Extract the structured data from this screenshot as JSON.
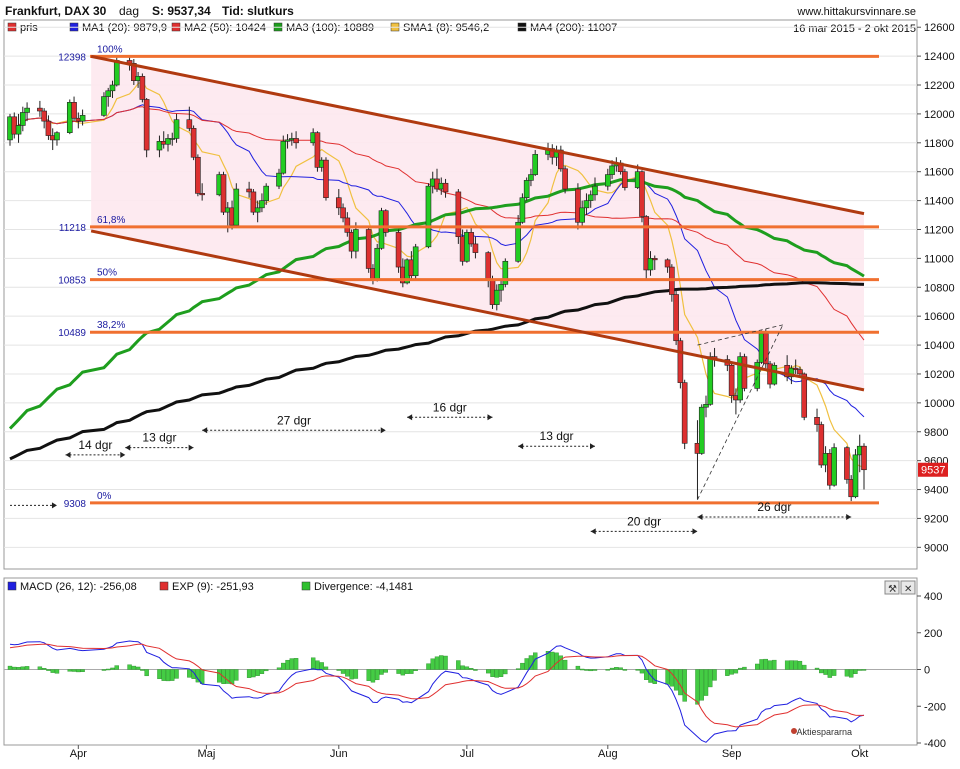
{
  "header": {
    "title": "Frankfurt, DAX 30",
    "period": "dag",
    "price_label": "S: 9537,34",
    "time_label": "Tid: slutkurs",
    "site": "www.hittakursvinnare.se",
    "date_range": "16 mar 2015 - 2 okt 2015"
  },
  "legend": [
    {
      "label": "pris",
      "color": "#e03030"
    },
    {
      "label": "MA1 (20): 9879,9",
      "color": "#2020e0"
    },
    {
      "label": "MA2 (50): 10424",
      "color": "#e03030"
    },
    {
      "label": "MA3 (100): 10889",
      "color": "#1e9e1e"
    },
    {
      "label": "SMA1 (8): 9546,2",
      "color": "#f0c040"
    },
    {
      "label": "MA4 (200): 11007",
      "color": "#111111"
    }
  ],
  "macd_legend": [
    {
      "label": "MACD (26, 12): -256,08",
      "color": "#2020e0"
    },
    {
      "label": "EXP (9): -251,93",
      "color": "#e03030"
    },
    {
      "label": "Divergence: -4,1481",
      "color": "#30c030"
    }
  ],
  "colors": {
    "up_candle": "#22cc22",
    "down_candle": "#dd3030",
    "fib_line": "#f07030",
    "channel": "#b03a10",
    "ma20": "#2020e0",
    "ma50": "#e03030",
    "ma100": "#1e9e1e",
    "sma8": "#f0c040",
    "ma200": "#111111",
    "channel_fill": "#fde8ee"
  },
  "watermark": "Aktiespararna",
  "last_price_tag": "9537",
  "chart_data": {
    "type": "candlestick",
    "x_range": [
      "2015-03-16",
      "2015-10-02"
    ],
    "y_range": [
      8850,
      12650
    ],
    "y_ticks": [
      {
        "value": 9000,
        "label": "9000"
      },
      {
        "value": 9200,
        "label": "9200"
      },
      {
        "value": 9400,
        "label": "9400"
      },
      {
        "value": 9600,
        "label": "9600"
      },
      {
        "value": 9800,
        "label": "9800"
      },
      {
        "value": 10000,
        "label": "10000"
      },
      {
        "value": 10200,
        "label": "10200"
      },
      {
        "value": 10400,
        "label": "10400"
      },
      {
        "value": 10600,
        "label": "10600"
      },
      {
        "value": 10800,
        "label": "10800"
      },
      {
        "value": 11000,
        "label": "11000"
      },
      {
        "value": 11200,
        "label": "11200"
      },
      {
        "value": 11400,
        "label": "11400"
      },
      {
        "value": 11600,
        "label": "11600"
      },
      {
        "value": 11800,
        "label": "11800"
      },
      {
        "value": 12000,
        "label": "12000"
      },
      {
        "value": 12200,
        "label": "12200"
      },
      {
        "value": 12400,
        "label": "12400"
      },
      {
        "value": 12600,
        "label": "12600"
      }
    ],
    "x_ticks": [
      {
        "date": "2015-04-01",
        "label": "Apr"
      },
      {
        "date": "2015-05-01",
        "label": "Maj"
      },
      {
        "date": "2015-06-01",
        "label": "Jun"
      },
      {
        "date": "2015-07-01",
        "label": "Jul"
      },
      {
        "date": "2015-08-03",
        "label": "Aug"
      },
      {
        "date": "2015-09-01",
        "label": "Sep"
      },
      {
        "date": "2015-10-01",
        "label": "Okt"
      }
    ],
    "fib_levels": [
      {
        "value": 12398,
        "label": "12398",
        "pct": "100%"
      },
      {
        "value": 11218,
        "label": "11218",
        "pct": "61,8%"
      },
      {
        "value": 10853,
        "label": "10853",
        "pct": "50%"
      },
      {
        "value": 10489,
        "label": "10489",
        "pct": "38,2%"
      },
      {
        "value": 9308,
        "label": "9308",
        "pct": "0%"
      }
    ],
    "trend_lines": [
      {
        "from": [
          "2015-04-04",
          12398
        ],
        "to": [
          "2015-10-02",
          11310
        ]
      },
      {
        "from": [
          "2015-04-04",
          11190
        ],
        "to": [
          "2015-10-02",
          10090
        ]
      }
    ],
    "dashed_lines": [
      {
        "from": [
          "2015-08-24",
          9330
        ],
        "to": [
          "2015-09-13",
          10540
        ]
      },
      {
        "from": [
          "2015-08-24",
          10400
        ],
        "to": [
          "2015-09-13",
          10540
        ]
      }
    ],
    "interval_labels": [
      {
        "label": "14 dgr",
        "from": "2015-03-29",
        "to": "2015-04-12",
        "value": 9640
      },
      {
        "label": "13 dgr",
        "from": "2015-04-12",
        "to": "2015-04-28",
        "value": 9690
      },
      {
        "label": "27 dgr",
        "from": "2015-04-30",
        "to": "2015-06-12",
        "value": 9810
      },
      {
        "label": "16 dgr",
        "from": "2015-06-17",
        "to": "2015-07-07",
        "value": 9900
      },
      {
        "label": "13 dgr",
        "from": "2015-07-13",
        "to": "2015-07-31",
        "value": 9700
      },
      {
        "label": "20 dgr",
        "from": "2015-07-30",
        "to": "2015-08-24",
        "value": 9110
      },
      {
        "label": "26 dgr",
        "from": "2015-08-24",
        "to": "2015-09-29",
        "value": 9210
      },
      {
        "label": "",
        "from": "2015-03-16",
        "to": "2015-03-27",
        "value": 9290
      }
    ],
    "candles": [
      [
        "2015-03-16",
        11820,
        12000,
        11780,
        11980
      ],
      [
        "2015-03-17",
        11980,
        12010,
        11830,
        11860
      ],
      [
        "2015-03-18",
        11860,
        12000,
        11800,
        11920
      ],
      [
        "2015-03-19",
        11920,
        12050,
        11880,
        12010
      ],
      [
        "2015-03-20",
        12010,
        12080,
        11950,
        12040
      ],
      [
        "2015-03-23",
        12040,
        12090,
        11980,
        12020
      ],
      [
        "2015-03-24",
        12020,
        12040,
        11900,
        11950
      ],
      [
        "2015-03-25",
        11950,
        11990,
        11820,
        11850
      ],
      [
        "2015-03-26",
        11850,
        11900,
        11750,
        11820
      ],
      [
        "2015-03-27",
        11820,
        11880,
        11780,
        11870
      ],
      [
        "2015-03-30",
        11870,
        12100,
        11860,
        12080
      ],
      [
        "2015-03-31",
        12080,
        12120,
        11950,
        11970
      ],
      [
        "2015-04-01",
        11970,
        12010,
        11900,
        11950
      ],
      [
        "2015-04-02",
        11950,
        12030,
        11920,
        11990
      ],
      [
        "2015-04-07",
        11990,
        12150,
        11980,
        12120
      ],
      [
        "2015-04-08",
        12120,
        12180,
        12050,
        12160
      ],
      [
        "2015-04-09",
        12160,
        12230,
        12110,
        12200
      ],
      [
        "2015-04-10",
        12200,
        12390,
        12190,
        12370
      ],
      [
        "2015-04-13",
        12370,
        12398,
        12300,
        12350
      ],
      [
        "2015-04-14",
        12350,
        12380,
        12200,
        12230
      ],
      [
        "2015-04-15",
        12230,
        12290,
        12180,
        12260
      ],
      [
        "2015-04-16",
        12260,
        12280,
        12080,
        12100
      ],
      [
        "2015-04-17",
        12100,
        12110,
        11700,
        11750
      ],
      [
        "2015-04-20",
        11750,
        11850,
        11700,
        11810
      ],
      [
        "2015-04-21",
        11810,
        11880,
        11760,
        11790
      ],
      [
        "2015-04-22",
        11790,
        11860,
        11740,
        11830
      ],
      [
        "2015-04-23",
        11830,
        11870,
        11780,
        11830
      ],
      [
        "2015-04-24",
        11830,
        12000,
        11800,
        11960
      ],
      [
        "2015-04-27",
        11960,
        12050,
        11880,
        11900
      ],
      [
        "2015-04-28",
        11900,
        11920,
        11680,
        11700
      ],
      [
        "2015-04-29",
        11700,
        11720,
        11430,
        11450
      ],
      [
        "2015-04-30",
        11450,
        11520,
        11400,
        11440
      ],
      [
        "2015-05-04",
        11440,
        11600,
        11430,
        11580
      ],
      [
        "2015-05-05",
        11580,
        11600,
        11300,
        11320
      ],
      [
        "2015-05-06",
        11320,
        11390,
        11180,
        11350
      ],
      [
        "2015-05-07",
        11350,
        11400,
        11200,
        11230
      ],
      [
        "2015-05-08",
        11230,
        11520,
        11210,
        11480
      ],
      [
        "2015-05-11",
        11480,
        11530,
        11420,
        11460
      ],
      [
        "2015-05-12",
        11460,
        11480,
        11300,
        11320
      ],
      [
        "2015-05-13",
        11320,
        11400,
        11250,
        11350
      ],
      [
        "2015-05-14",
        11350,
        11450,
        11320,
        11400
      ],
      [
        "2015-05-15",
        11400,
        11520,
        11370,
        11500
      ],
      [
        "2015-05-18",
        11500,
        11620,
        11480,
        11590
      ],
      [
        "2015-05-19",
        11590,
        11850,
        11580,
        11810
      ],
      [
        "2015-05-20",
        11810,
        11860,
        11760,
        11820
      ],
      [
        "2015-05-21",
        11820,
        11870,
        11780,
        11830
      ],
      [
        "2015-05-22",
        11830,
        11880,
        11760,
        11800
      ],
      [
        "2015-05-26",
        11800,
        11900,
        11780,
        11870
      ],
      [
        "2015-05-27",
        11870,
        11880,
        11600,
        11630
      ],
      [
        "2015-05-28",
        11630,
        11700,
        11600,
        11680
      ],
      [
        "2015-05-29",
        11680,
        11700,
        11400,
        11420
      ],
      [
        "2015-06-01",
        11420,
        11480,
        11300,
        11350
      ],
      [
        "2015-06-02",
        11350,
        11380,
        11250,
        11280
      ],
      [
        "2015-06-03",
        11280,
        11320,
        11150,
        11180
      ],
      [
        "2015-06-04",
        11180,
        11200,
        11000,
        11050
      ],
      [
        "2015-06-05",
        11050,
        11250,
        11000,
        11200
      ],
      [
        "2015-06-08",
        11200,
        11220,
        10900,
        10930
      ],
      [
        "2015-06-09",
        10930,
        10960,
        10820,
        10850
      ],
      [
        "2015-06-10",
        10850,
        11100,
        10840,
        11070
      ],
      [
        "2015-06-11",
        11070,
        11350,
        11060,
        11330
      ],
      [
        "2015-06-12",
        11330,
        11340,
        11150,
        11180
      ],
      [
        "2015-06-15",
        11180,
        11200,
        10900,
        10940
      ],
      [
        "2015-06-16",
        10940,
        11000,
        10800,
        10830
      ],
      [
        "2015-06-17",
        10830,
        11000,
        10820,
        10990
      ],
      [
        "2015-06-18",
        10990,
        11050,
        10850,
        10880
      ],
      [
        "2015-06-19",
        10880,
        11100,
        10860,
        11080
      ],
      [
        "2015-06-22",
        11080,
        11520,
        11070,
        11500
      ],
      [
        "2015-06-23",
        11500,
        11600,
        11450,
        11550
      ],
      [
        "2015-06-24",
        11550,
        11620,
        11460,
        11480
      ],
      [
        "2015-06-25",
        11480,
        11560,
        11440,
        11520
      ],
      [
        "2015-06-26",
        11520,
        11550,
        11420,
        11460
      ],
      [
        "2015-06-29",
        11460,
        11480,
        11100,
        11150
      ],
      [
        "2015-06-30",
        11150,
        11200,
        10950,
        10980
      ],
      [
        "2015-07-01",
        10980,
        11200,
        10970,
        11180
      ],
      [
        "2015-07-02",
        11180,
        11220,
        11080,
        11100
      ],
      [
        "2015-07-03",
        11100,
        11150,
        11000,
        11040
      ],
      [
        "2015-07-06",
        11040,
        11050,
        10800,
        10850
      ],
      [
        "2015-07-07",
        10850,
        10880,
        10650,
        10680
      ],
      [
        "2015-07-08",
        10680,
        10820,
        10640,
        10780
      ],
      [
        "2015-07-09",
        10780,
        10850,
        10700,
        10820
      ],
      [
        "2015-07-10",
        10820,
        11000,
        10800,
        10980
      ],
      [
        "2015-07-13",
        10980,
        11300,
        10970,
        11250
      ],
      [
        "2015-07-14",
        11250,
        11450,
        11240,
        11420
      ],
      [
        "2015-07-15",
        11420,
        11560,
        11400,
        11540
      ],
      [
        "2015-07-16",
        11540,
        11620,
        11500,
        11580
      ],
      [
        "2015-07-17",
        11580,
        11750,
        11570,
        11720
      ],
      [
        "2015-07-20",
        11720,
        11800,
        11680,
        11760
      ],
      [
        "2015-07-21",
        11760,
        11790,
        11650,
        11700
      ],
      [
        "2015-07-22",
        11700,
        11780,
        11640,
        11750
      ],
      [
        "2015-07-23",
        11750,
        11780,
        11600,
        11620
      ],
      [
        "2015-07-24",
        11620,
        11640,
        11450,
        11480
      ],
      [
        "2015-07-27",
        11480,
        11520,
        11200,
        11250
      ],
      [
        "2015-07-28",
        11250,
        11400,
        11220,
        11350
      ],
      [
        "2015-07-29",
        11350,
        11450,
        11300,
        11400
      ],
      [
        "2015-07-30",
        11400,
        11470,
        11350,
        11440
      ],
      [
        "2015-07-31",
        11440,
        11560,
        11400,
        11500
      ],
      [
        "2015-08-03",
        11500,
        11620,
        11470,
        11580
      ],
      [
        "2015-08-04",
        11580,
        11680,
        11550,
        11640
      ],
      [
        "2015-08-05",
        11640,
        11700,
        11600,
        11660
      ],
      [
        "2015-08-06",
        11660,
        11680,
        11580,
        11600
      ],
      [
        "2015-08-07",
        11600,
        11620,
        11470,
        11490
      ],
      [
        "2015-08-10",
        11490,
        11650,
        11480,
        11600
      ],
      [
        "2015-08-11",
        11600,
        11610,
        11250,
        11290
      ],
      [
        "2015-08-12",
        11290,
        11300,
        10850,
        10920
      ],
      [
        "2015-08-13",
        10920,
        11050,
        10880,
        11000
      ],
      [
        "2015-08-14",
        11000,
        11020,
        10920,
        10990
      ],
      [
        "2015-08-17",
        10990,
        11000,
        10900,
        10940
      ],
      [
        "2015-08-18",
        10940,
        10960,
        10700,
        10750
      ],
      [
        "2015-08-19",
        10750,
        10780,
        10400,
        10430
      ],
      [
        "2015-08-20",
        10430,
        10450,
        10100,
        10140
      ],
      [
        "2015-08-21",
        10140,
        10160,
        9680,
        9720
      ],
      [
        "2015-08-24",
        9720,
        9880,
        9330,
        9650
      ],
      [
        "2015-08-25",
        9650,
        9990,
        9640,
        9970
      ],
      [
        "2015-08-26",
        9970,
        10050,
        9900,
        9990
      ],
      [
        "2015-08-27",
        9990,
        10350,
        9980,
        10320
      ],
      [
        "2015-08-28",
        10320,
        10380,
        10250,
        10300
      ],
      [
        "2015-08-31",
        10300,
        10330,
        10220,
        10260
      ],
      [
        "2015-09-01",
        10260,
        10270,
        10000,
        10050
      ],
      [
        "2015-09-02",
        10050,
        10100,
        9920,
        10020
      ],
      [
        "2015-09-03",
        10020,
        10350,
        10000,
        10320
      ],
      [
        "2015-09-04",
        10320,
        10340,
        10080,
        10100
      ],
      [
        "2015-09-07",
        10100,
        10300,
        10080,
        10280
      ],
      [
        "2015-09-08",
        10280,
        10500,
        10270,
        10480
      ],
      [
        "2015-09-09",
        10480,
        10510,
        10240,
        10270
      ],
      [
        "2015-09-10",
        10270,
        10290,
        10100,
        10130
      ],
      [
        "2015-09-11",
        10130,
        10280,
        10120,
        10260
      ],
      [
        "2015-09-14",
        10260,
        10330,
        10150,
        10180
      ],
      [
        "2015-09-15",
        10180,
        10260,
        10130,
        10240
      ],
      [
        "2015-09-16",
        10240,
        10300,
        10200,
        10230
      ],
      [
        "2015-09-17",
        10230,
        10250,
        10180,
        10200
      ],
      [
        "2015-09-18",
        10200,
        10210,
        9880,
        9900
      ],
      [
        "2015-09-21",
        9900,
        9960,
        9800,
        9850
      ],
      [
        "2015-09-22",
        9850,
        9870,
        9550,
        9570
      ],
      [
        "2015-09-23",
        9570,
        9700,
        9520,
        9650
      ],
      [
        "2015-09-24",
        9650,
        9680,
        9400,
        9430
      ],
      [
        "2015-09-25",
        9430,
        9720,
        9420,
        9690
      ],
      [
        "2015-09-28",
        9690,
        9700,
        9440,
        9470
      ],
      [
        "2015-09-29",
        9470,
        9500,
        9320,
        9350
      ],
      [
        "2015-09-30",
        9350,
        9680,
        9340,
        9640
      ],
      [
        "2015-10-01",
        9640,
        9780,
        9520,
        9700
      ],
      [
        "2015-10-02",
        9700,
        9720,
        9400,
        9537
      ]
    ],
    "macd": {
      "y_range": [
        -400,
        400
      ],
      "y_ticks": [
        {
          "value": -400,
          "label": "-400"
        },
        {
          "value": -200,
          "label": "-200"
        },
        {
          "value": 0,
          "label": "0"
        },
        {
          "value": 200,
          "label": "200"
        },
        {
          "value": 400,
          "label": "400"
        }
      ]
    }
  }
}
